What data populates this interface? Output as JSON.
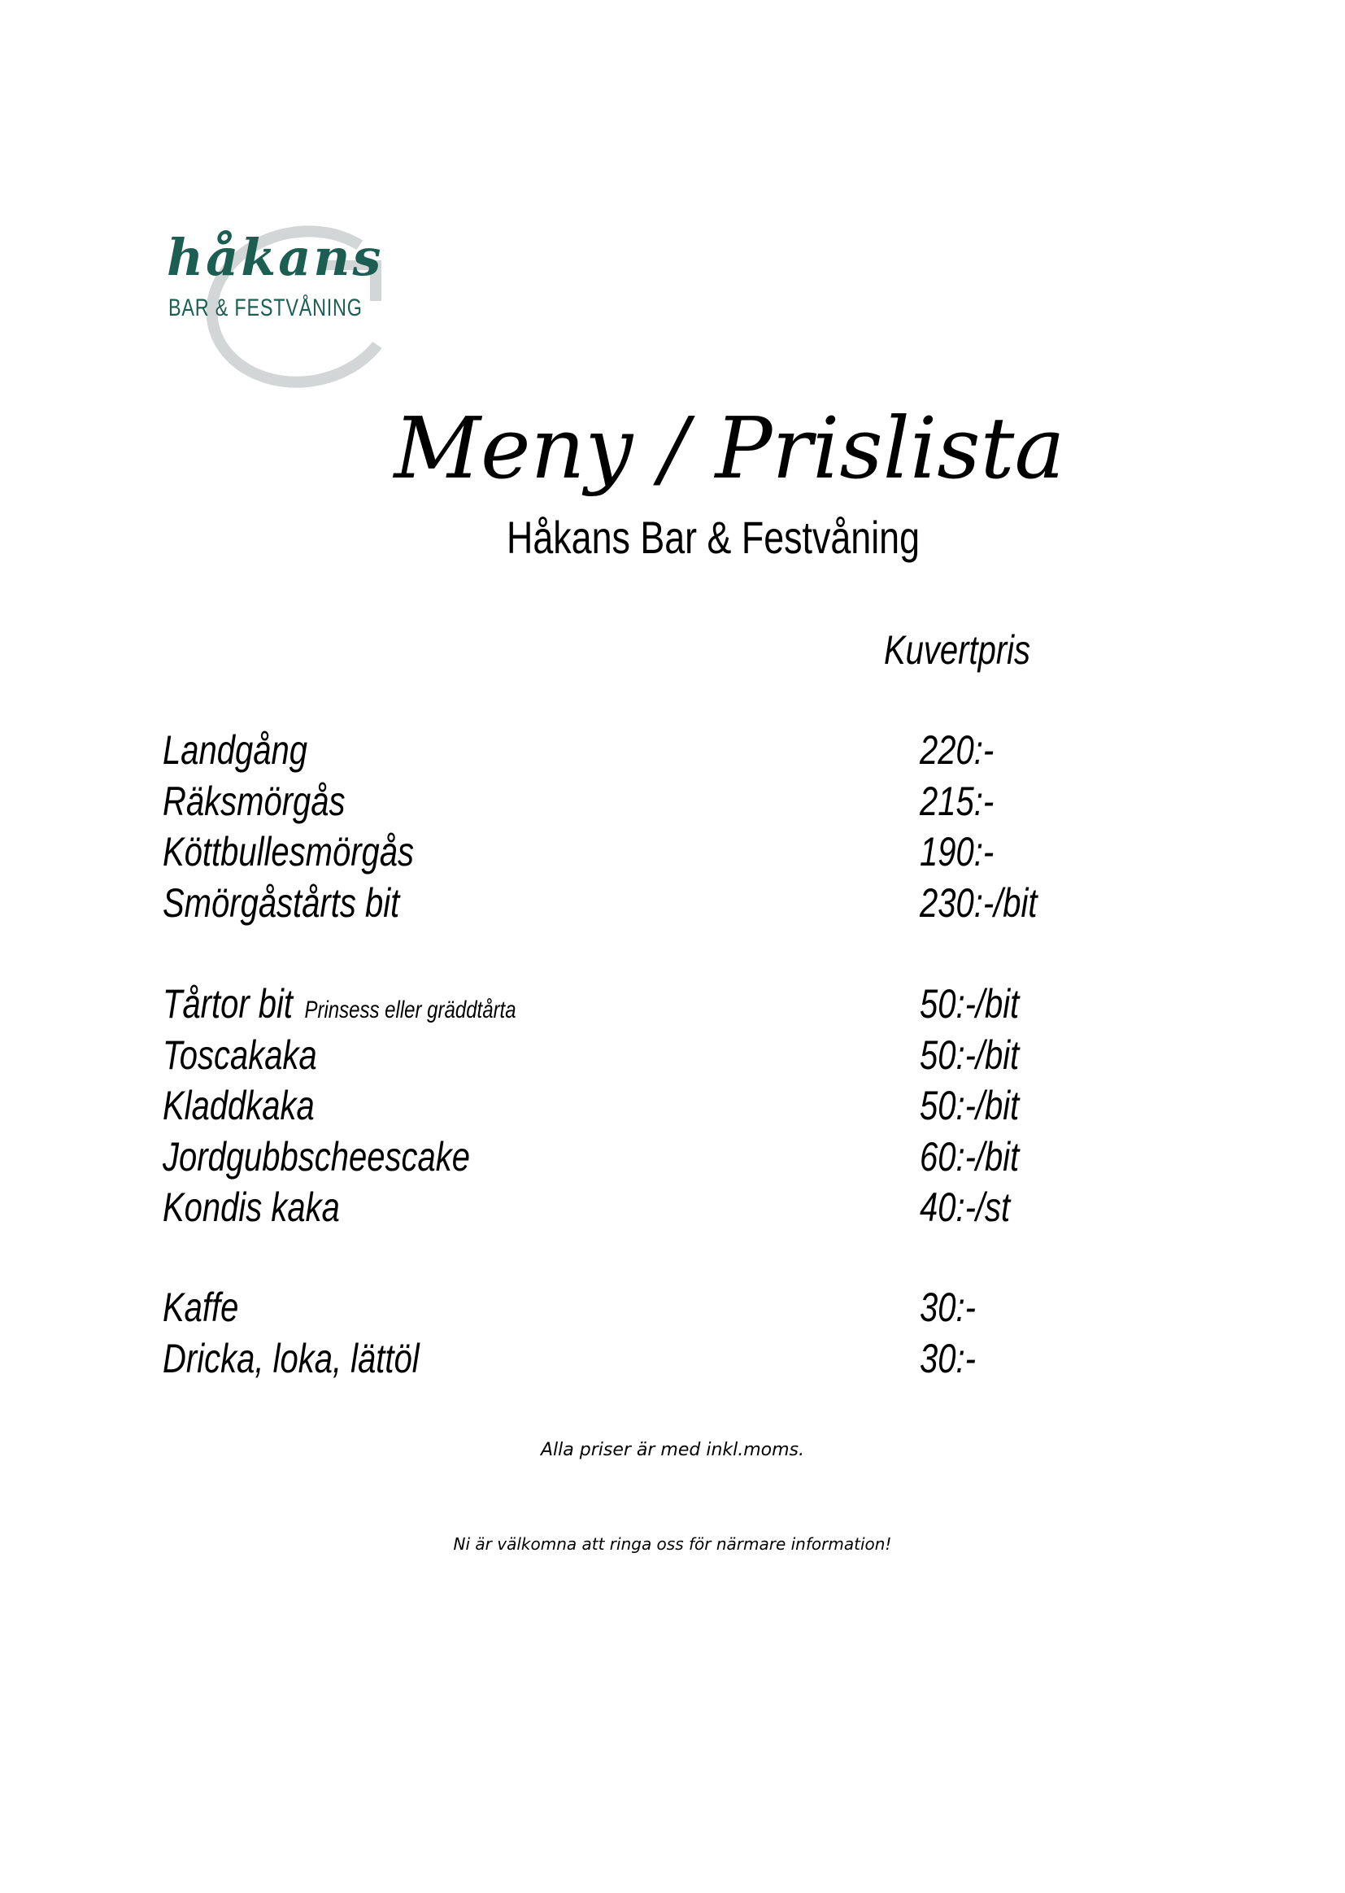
{
  "logo": {
    "name": "håkans",
    "subtitle": "BAR & FESTVÅNING",
    "brand_color": "#1d5e52"
  },
  "title": "Meny / Prislista",
  "subtitle": "Håkans Bar & Festvåning",
  "price_header": "Kuvertpris",
  "groups": [
    [
      {
        "name": "Landgång",
        "price": "220:-"
      },
      {
        "name": "Räksmörgås",
        "price": "215:-"
      },
      {
        "name": "Köttbullesmörgås",
        "price": "190:-"
      },
      {
        "name": "Smörgåstårts bit",
        "price": "230:-/bit"
      }
    ],
    [
      {
        "name": "Tårtor bit",
        "note": "Prinsess eller gräddtårta",
        "price": "50:-/bit"
      },
      {
        "name": "Toscakaka",
        "price": "50:-/bit"
      },
      {
        "name": "Kladdkaka",
        "price": "50:-/bit"
      },
      {
        "name": "Jordgubbscheescake",
        "price": "60:-/bit"
      },
      {
        "name": "Kondis kaka",
        "price": "40:-/st"
      }
    ],
    [
      {
        "name": "Kaffe",
        "price": "30:-"
      },
      {
        "name": "Dricka, loka, lättöl",
        "price": "30:-"
      }
    ]
  ],
  "footer": {
    "vat_note": "Alla priser är med inkl.moms.",
    "contact_note": "Ni är välkomna att ringa oss för närmare information!"
  }
}
